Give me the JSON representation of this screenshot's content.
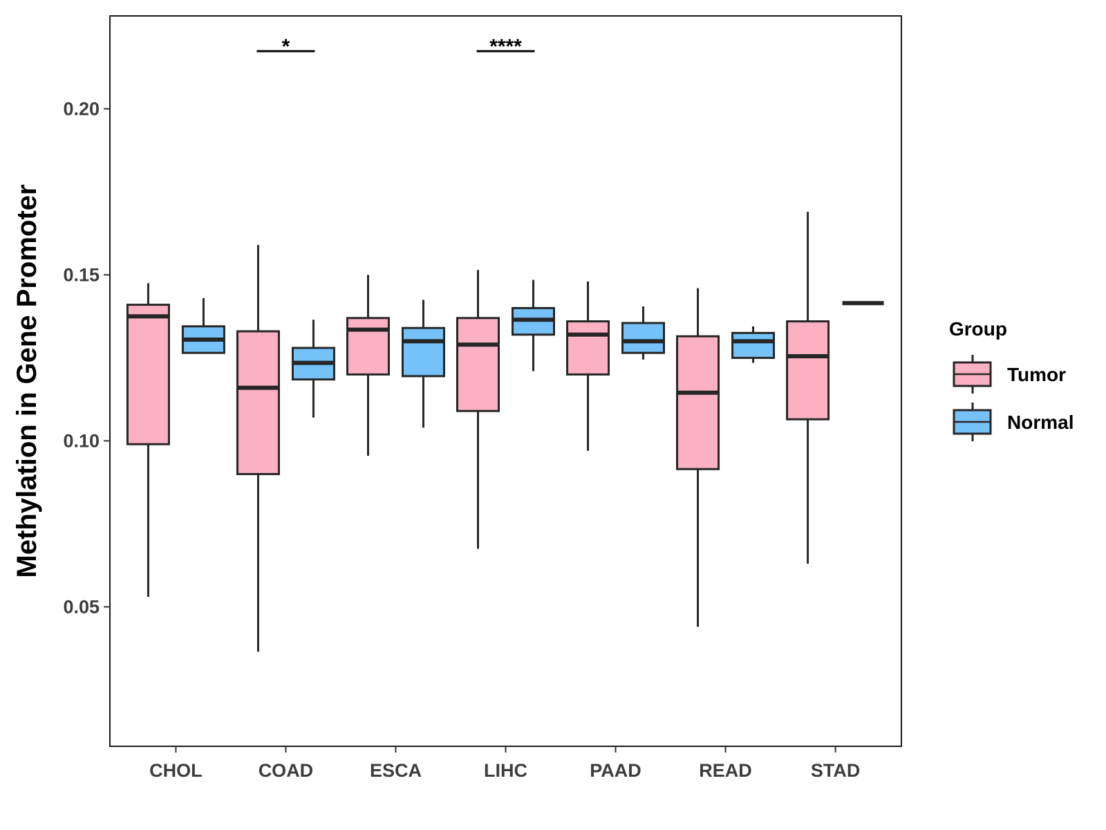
{
  "chart_data": {
    "type": "boxplot",
    "title": "",
    "xlabel": "",
    "ylabel": "Methylation in Gene Promoter",
    "ylim": [
      0.008,
      0.228
    ],
    "yticks": [
      "0.05",
      "0.10",
      "0.15",
      "0.20"
    ],
    "categories": [
      "CHOL",
      "COAD",
      "ESCA",
      "LIHC",
      "PAAD",
      "READ",
      "STAD"
    ],
    "legend": {
      "title": "Group",
      "position": "right",
      "entries": [
        {
          "label": "Tumor",
          "color": "#fbb1c3"
        },
        {
          "label": "Normal",
          "color": "#76c1f8"
        }
      ]
    },
    "series": [
      {
        "name": "Tumor",
        "color": "#fbb1c3",
        "boxes": [
          {
            "category": "CHOL",
            "min": 0.053,
            "q1": 0.099,
            "median": 0.1375,
            "q3": 0.141,
            "max": 0.1475
          },
          {
            "category": "COAD",
            "min": 0.0365,
            "q1": 0.09,
            "median": 0.116,
            "q3": 0.133,
            "max": 0.159
          },
          {
            "category": "ESCA",
            "min": 0.0955,
            "q1": 0.12,
            "median": 0.1335,
            "q3": 0.137,
            "max": 0.15
          },
          {
            "category": "LIHC",
            "min": 0.0675,
            "q1": 0.109,
            "median": 0.129,
            "q3": 0.137,
            "max": 0.1515
          },
          {
            "category": "PAAD",
            "min": 0.097,
            "q1": 0.12,
            "median": 0.132,
            "q3": 0.136,
            "max": 0.148
          },
          {
            "category": "READ",
            "min": 0.044,
            "q1": 0.0915,
            "median": 0.1145,
            "q3": 0.1315,
            "max": 0.146
          },
          {
            "category": "STAD",
            "min": 0.063,
            "q1": 0.1065,
            "median": 0.1255,
            "q3": 0.136,
            "max": 0.169
          }
        ]
      },
      {
        "name": "Normal",
        "color": "#76c1f8",
        "boxes": [
          {
            "category": "CHOL",
            "min": 0.1265,
            "q1": 0.1265,
            "median": 0.1305,
            "q3": 0.1345,
            "max": 0.143
          },
          {
            "category": "COAD",
            "min": 0.107,
            "q1": 0.1185,
            "median": 0.1235,
            "q3": 0.128,
            "max": 0.1365
          },
          {
            "category": "ESCA",
            "min": 0.104,
            "q1": 0.1195,
            "median": 0.13,
            "q3": 0.134,
            "max": 0.1425
          },
          {
            "category": "LIHC",
            "min": 0.121,
            "q1": 0.132,
            "median": 0.1365,
            "q3": 0.14,
            "max": 0.1485
          },
          {
            "category": "PAAD",
            "min": 0.1245,
            "q1": 0.1265,
            "median": 0.13,
            "q3": 0.1355,
            "max": 0.1405
          },
          {
            "category": "READ",
            "min": 0.1235,
            "q1": 0.125,
            "median": 0.13,
            "q3": 0.1325,
            "max": 0.1345
          },
          {
            "category": "STAD",
            "min": 0.1415,
            "q1": 0.1415,
            "median": 0.1415,
            "q3": 0.1415,
            "max": 0.1415
          }
        ]
      }
    ],
    "annotations": [
      {
        "category": "COAD",
        "label": "*",
        "y": 0.218
      },
      {
        "category": "LIHC",
        "label": "****",
        "y": 0.218
      }
    ]
  }
}
